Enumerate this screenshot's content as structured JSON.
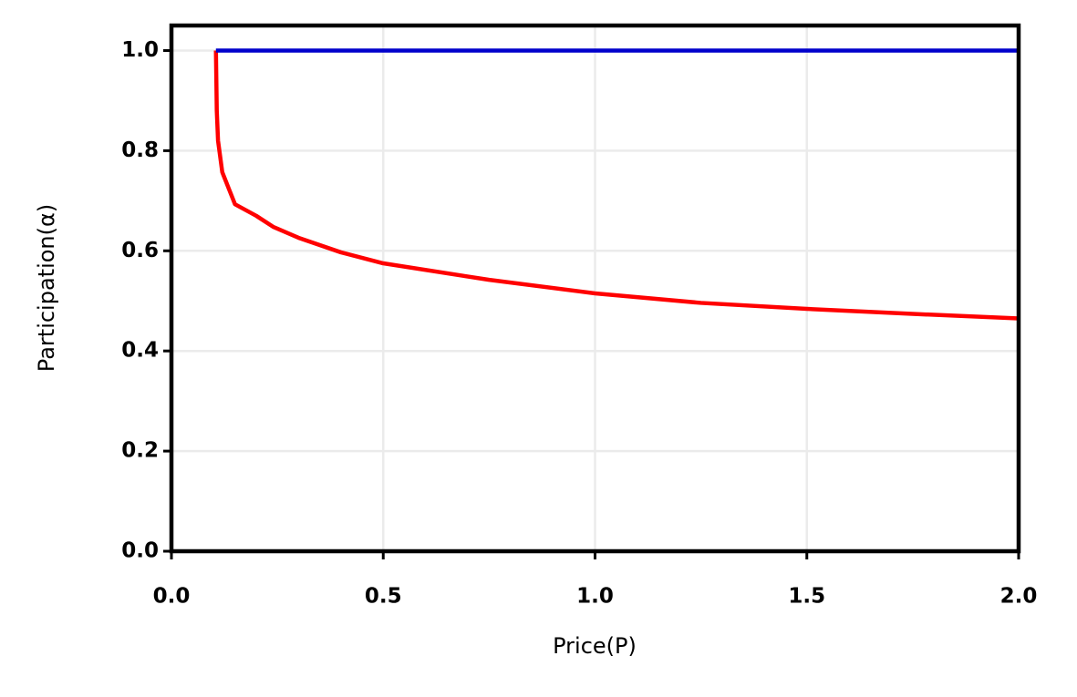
{
  "chart_data": {
    "type": "line",
    "xlabel": "Price(P)",
    "ylabel": "Participation(α)",
    "xlim": [
      0,
      2
    ],
    "ylim": [
      0,
      1.05
    ],
    "xticks": [
      {
        "value": 0,
        "label": "0.0"
      },
      0.5,
      {
        "value": 1,
        "label": "1.0"
      },
      1.5,
      {
        "value": 2,
        "label": "2.0"
      }
    ],
    "yticks": [
      {
        "value": 0,
        "label": "0.0"
      },
      0.2,
      0.4,
      0.6,
      0.8,
      {
        "value": 1,
        "label": "1.0"
      }
    ],
    "grid": true,
    "series": [
      {
        "color": "#ff0000",
        "x": [
          0.105,
          0.107,
          0.11,
          0.12,
          0.15,
          0.2,
          0.24,
          0.3,
          0.4,
          0.5,
          0.75,
          1.0,
          1.25,
          1.5,
          1.75,
          2.0
        ],
        "values": [
          1.0,
          0.88,
          0.82,
          0.757,
          0.693,
          0.67,
          0.648,
          0.626,
          0.597,
          0.575,
          0.542,
          0.515,
          0.496,
          0.484,
          0.474,
          0.465
        ]
      },
      {
        "color": "#0000cc",
        "x": [
          0.105,
          2.0
        ],
        "values": [
          1.0,
          1.0
        ]
      }
    ]
  }
}
